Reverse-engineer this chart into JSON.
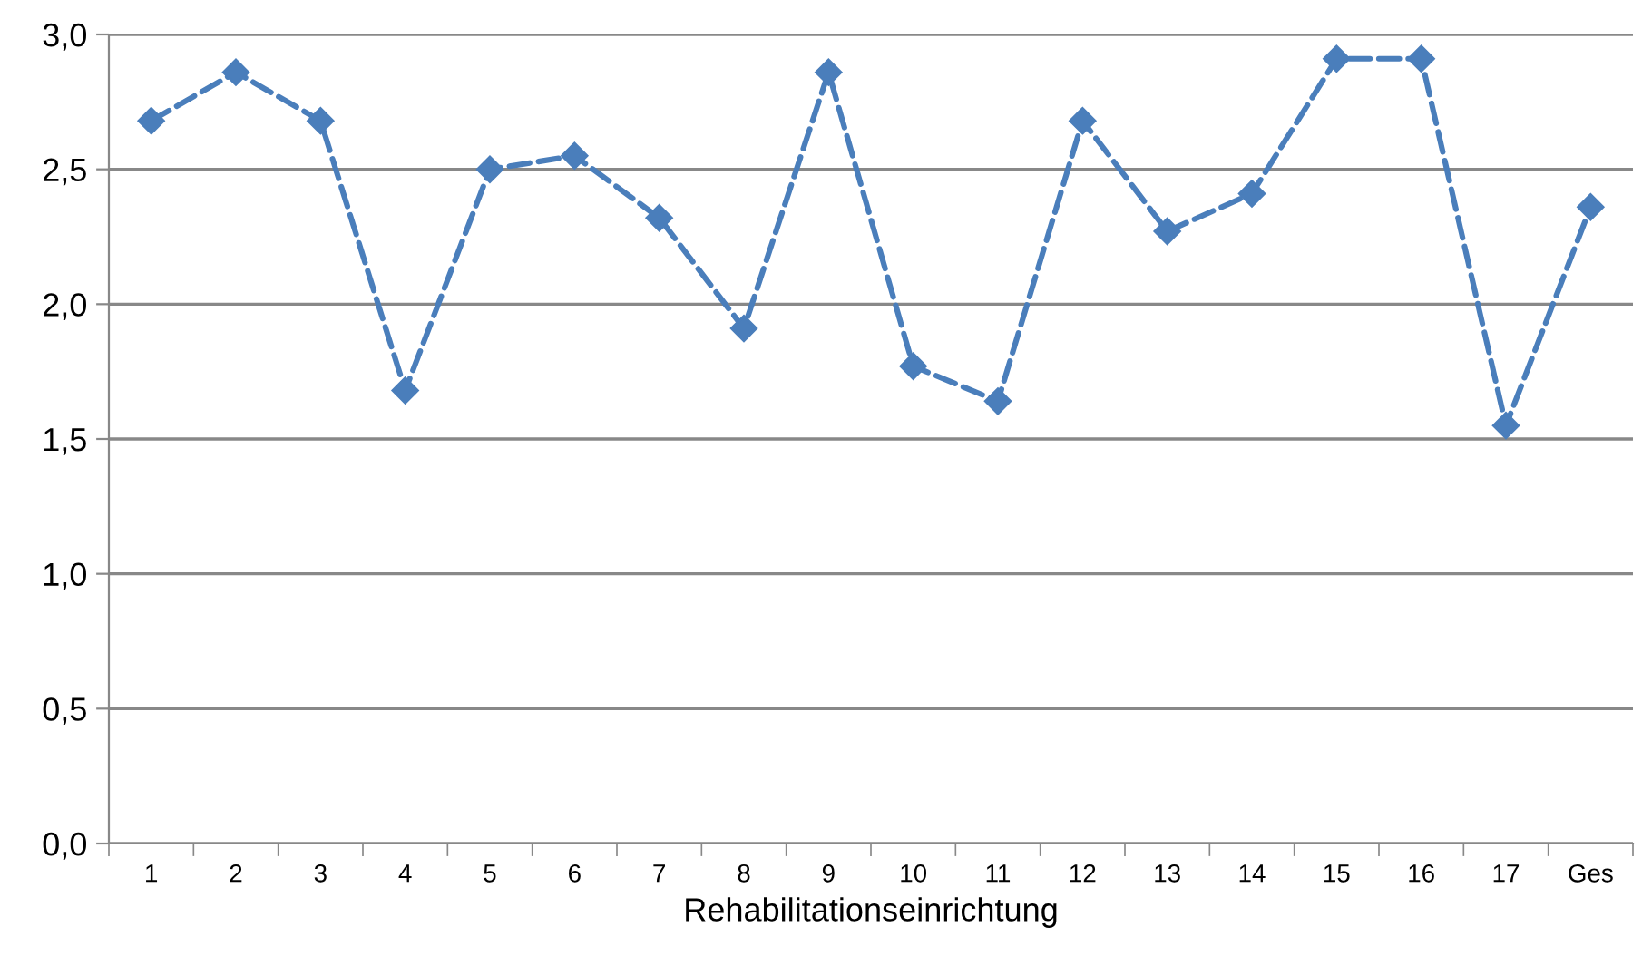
{
  "chart_data": {
    "type": "line",
    "xlabel": "Rehabilitationseinrichtung",
    "categories": [
      "1",
      "2",
      "3",
      "4",
      "5",
      "6",
      "7",
      "8",
      "9",
      "10",
      "11",
      "12",
      "13",
      "14",
      "15",
      "16",
      "17",
      "Ges"
    ],
    "series": [
      {
        "color": "#4a7ebb",
        "values": [
          2.68,
          2.86,
          2.68,
          1.68,
          2.5,
          2.55,
          2.32,
          1.91,
          2.86,
          1.77,
          1.64,
          2.68,
          2.27,
          2.41,
          2.91,
          2.91,
          1.55,
          2.36
        ]
      }
    ],
    "ylim": [
      0,
      3
    ],
    "yticks": [
      {
        "value": 0,
        "label": "0,0"
      },
      {
        "value": 0.5,
        "label": "0,5"
      },
      {
        "value": 1,
        "label": "1,0"
      },
      {
        "value": 1.5,
        "label": "1,5"
      },
      {
        "value": 2,
        "label": "2,0"
      },
      {
        "value": 2.5,
        "label": "2,5"
      },
      {
        "value": 3,
        "label": "3,0"
      }
    ],
    "grid": "y",
    "marker": "diamond",
    "line_style": "dashed",
    "legend": false
  }
}
